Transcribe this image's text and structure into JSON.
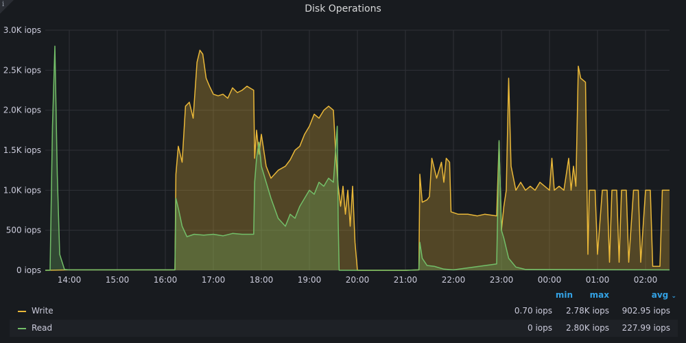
{
  "panel": {
    "title": "Disk Operations",
    "info_icon": "info-icon",
    "info_glyph": "i"
  },
  "chart_data": {
    "type": "area",
    "title": "Disk Operations",
    "xlabel": "",
    "ylabel": "",
    "ylim": [
      0,
      3000
    ],
    "xlim": [
      13.5,
      26.5
    ],
    "grid": true,
    "y_ticks": [
      {
        "v": 0,
        "label": "0 iops"
      },
      {
        "v": 500,
        "label": "500 iops"
      },
      {
        "v": 1000,
        "label": "1.0K iops"
      },
      {
        "v": 1500,
        "label": "1.5K iops"
      },
      {
        "v": 2000,
        "label": "2.0K iops"
      },
      {
        "v": 2500,
        "label": "2.5K iops"
      },
      {
        "v": 3000,
        "label": "3.0K iops"
      }
    ],
    "x_ticks": [
      {
        "h": 14,
        "label": "14:00"
      },
      {
        "h": 15,
        "label": "15:00"
      },
      {
        "h": 16,
        "label": "16:00"
      },
      {
        "h": 17,
        "label": "17:00"
      },
      {
        "h": 18,
        "label": "18:00"
      },
      {
        "h": 19,
        "label": "19:00"
      },
      {
        "h": 20,
        "label": "20:00"
      },
      {
        "h": 21,
        "label": "21:00"
      },
      {
        "h": 22,
        "label": "22:00"
      },
      {
        "h": 23,
        "label": "23:00"
      },
      {
        "h": 24,
        "label": "00:00"
      },
      {
        "h": 25,
        "label": "01:00"
      },
      {
        "h": 26,
        "label": "02:00"
      }
    ],
    "series": [
      {
        "name": "Write",
        "color": "#eab839",
        "points": [
          [
            13.5,
            0
          ],
          [
            14.0,
            5
          ],
          [
            15.0,
            5
          ],
          [
            16.0,
            5
          ],
          [
            16.2,
            5
          ],
          [
            16.22,
            1200
          ],
          [
            16.27,
            1550
          ],
          [
            16.35,
            1350
          ],
          [
            16.42,
            2050
          ],
          [
            16.5,
            2100
          ],
          [
            16.58,
            1900
          ],
          [
            16.66,
            2600
          ],
          [
            16.72,
            2750
          ],
          [
            16.78,
            2700
          ],
          [
            16.85,
            2400
          ],
          [
            16.92,
            2300
          ],
          [
            17.0,
            2200
          ],
          [
            17.1,
            2180
          ],
          [
            17.2,
            2200
          ],
          [
            17.3,
            2150
          ],
          [
            17.4,
            2280
          ],
          [
            17.5,
            2220
          ],
          [
            17.6,
            2250
          ],
          [
            17.7,
            2300
          ],
          [
            17.84,
            2250
          ],
          [
            17.86,
            1400
          ],
          [
            17.9,
            1750
          ],
          [
            17.95,
            1450
          ],
          [
            18.0,
            1700
          ],
          [
            18.1,
            1300
          ],
          [
            18.2,
            1150
          ],
          [
            18.35,
            1250
          ],
          [
            18.5,
            1300
          ],
          [
            18.6,
            1380
          ],
          [
            18.7,
            1500
          ],
          [
            18.8,
            1550
          ],
          [
            18.9,
            1700
          ],
          [
            19.0,
            1800
          ],
          [
            19.1,
            1950
          ],
          [
            19.2,
            1900
          ],
          [
            19.3,
            2000
          ],
          [
            19.4,
            2050
          ],
          [
            19.5,
            2000
          ],
          [
            19.55,
            1450
          ],
          [
            19.6,
            1050
          ],
          [
            19.65,
            800
          ],
          [
            19.7,
            1050
          ],
          [
            19.75,
            700
          ],
          [
            19.8,
            1000
          ],
          [
            19.85,
            550
          ],
          [
            19.9,
            1050
          ],
          [
            19.95,
            350
          ],
          [
            20.0,
            0
          ],
          [
            21.0,
            0
          ],
          [
            21.28,
            5
          ],
          [
            21.3,
            1200
          ],
          [
            21.35,
            850
          ],
          [
            21.45,
            880
          ],
          [
            21.5,
            920
          ],
          [
            21.55,
            1400
          ],
          [
            21.65,
            1150
          ],
          [
            21.75,
            1350
          ],
          [
            21.8,
            1100
          ],
          [
            21.85,
            1400
          ],
          [
            21.92,
            1350
          ],
          [
            21.95,
            730
          ],
          [
            22.1,
            700
          ],
          [
            22.3,
            700
          ],
          [
            22.5,
            680
          ],
          [
            22.65,
            700
          ],
          [
            22.9,
            680
          ],
          [
            22.95,
            1600
          ],
          [
            23.0,
            500
          ],
          [
            23.05,
            800
          ],
          [
            23.1,
            1000
          ],
          [
            23.15,
            2400
          ],
          [
            23.2,
            1300
          ],
          [
            23.3,
            1000
          ],
          [
            23.4,
            1100
          ],
          [
            23.5,
            1000
          ],
          [
            23.6,
            1050
          ],
          [
            23.7,
            1000
          ],
          [
            23.8,
            1100
          ],
          [
            24.0,
            1000
          ],
          [
            24.05,
            1400
          ],
          [
            24.1,
            1000
          ],
          [
            24.2,
            1050
          ],
          [
            24.3,
            1000
          ],
          [
            24.4,
            1400
          ],
          [
            24.45,
            1000
          ],
          [
            24.5,
            1300
          ],
          [
            24.55,
            1050
          ],
          [
            24.6,
            2550
          ],
          [
            24.65,
            2400
          ],
          [
            24.75,
            2350
          ],
          [
            24.8,
            200
          ],
          [
            24.83,
            1000
          ],
          [
            24.95,
            1000
          ],
          [
            25.0,
            200
          ],
          [
            25.1,
            1000
          ],
          [
            25.2,
            1000
          ],
          [
            25.25,
            100
          ],
          [
            25.3,
            1000
          ],
          [
            25.4,
            1000
          ],
          [
            25.45,
            100
          ],
          [
            25.5,
            1000
          ],
          [
            25.6,
            1000
          ],
          [
            25.65,
            100
          ],
          [
            25.75,
            1000
          ],
          [
            25.85,
            1000
          ],
          [
            25.9,
            100
          ],
          [
            26.0,
            1000
          ],
          [
            26.1,
            1000
          ],
          [
            26.15,
            50
          ],
          [
            26.3,
            50
          ],
          [
            26.35,
            1000
          ],
          [
            26.5,
            1000
          ]
        ]
      },
      {
        "name": "Read",
        "color": "#73bf69",
        "points": [
          [
            13.5,
            0
          ],
          [
            13.6,
            0
          ],
          [
            13.65,
            1800
          ],
          [
            13.7,
            2800
          ],
          [
            13.75,
            1200
          ],
          [
            13.8,
            200
          ],
          [
            13.9,
            10
          ],
          [
            14.0,
            5
          ],
          [
            15.0,
            5
          ],
          [
            16.0,
            5
          ],
          [
            16.2,
            5
          ],
          [
            16.22,
            900
          ],
          [
            16.28,
            750
          ],
          [
            16.35,
            550
          ],
          [
            16.45,
            420
          ],
          [
            16.6,
            450
          ],
          [
            16.8,
            440
          ],
          [
            17.0,
            450
          ],
          [
            17.2,
            430
          ],
          [
            17.4,
            460
          ],
          [
            17.6,
            450
          ],
          [
            17.84,
            450
          ],
          [
            17.86,
            1100
          ],
          [
            17.9,
            1400
          ],
          [
            17.95,
            1600
          ],
          [
            18.0,
            1300
          ],
          [
            18.1,
            1100
          ],
          [
            18.2,
            900
          ],
          [
            18.35,
            650
          ],
          [
            18.5,
            550
          ],
          [
            18.6,
            700
          ],
          [
            18.7,
            650
          ],
          [
            18.8,
            800
          ],
          [
            18.9,
            900
          ],
          [
            19.0,
            1000
          ],
          [
            19.1,
            950
          ],
          [
            19.2,
            1100
          ],
          [
            19.3,
            1050
          ],
          [
            19.4,
            1150
          ],
          [
            19.5,
            1100
          ],
          [
            19.58,
            1800
          ],
          [
            19.6,
            600
          ],
          [
            19.62,
            0
          ],
          [
            20.0,
            0
          ],
          [
            21.0,
            0
          ],
          [
            21.28,
            5
          ],
          [
            21.3,
            350
          ],
          [
            21.35,
            150
          ],
          [
            21.45,
            60
          ],
          [
            21.6,
            50
          ],
          [
            21.8,
            15
          ],
          [
            22.0,
            5
          ],
          [
            22.9,
            80
          ],
          [
            22.95,
            1620
          ],
          [
            23.0,
            500
          ],
          [
            23.05,
            400
          ],
          [
            23.15,
            150
          ],
          [
            23.3,
            40
          ],
          [
            23.5,
            10
          ],
          [
            26.5,
            5
          ]
        ]
      }
    ]
  },
  "legend": {
    "headers": {
      "min": "min",
      "max": "max",
      "avg": "avg",
      "sort_icon": "chevron-down-icon"
    },
    "rows": [
      {
        "name": "Write",
        "color": "#eab839",
        "min": "0.70 iops",
        "max": "2.78K iops",
        "avg": "902.95 iops"
      },
      {
        "name": "Read",
        "color": "#73bf69",
        "min": "0 iops",
        "max": "2.80K iops",
        "avg": "227.99 iops"
      }
    ]
  }
}
